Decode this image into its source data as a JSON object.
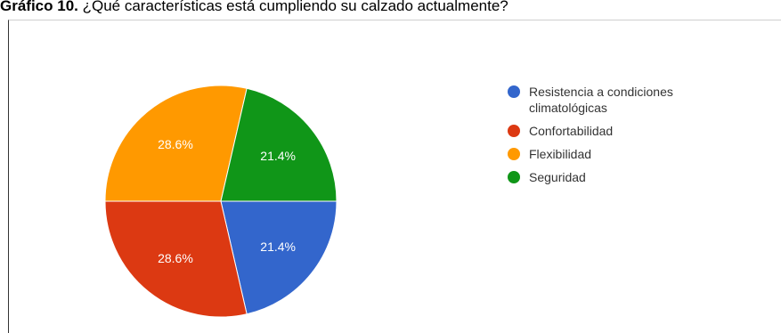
{
  "caption": {
    "label": "Gráfico 10.",
    "text": " ¿Qué características está cumpliendo su calzado actualmente?"
  },
  "chart_data": {
    "type": "pie",
    "title": "",
    "slices": [
      {
        "label": "Resistencia a condiciones climatológicas",
        "value": 21.4,
        "display": "21.4%",
        "color": "#3366cc"
      },
      {
        "label": "Confortabilidad",
        "value": 28.6,
        "display": "28.6%",
        "color": "#dc3912"
      },
      {
        "label": "Flexibilidad",
        "value": 28.6,
        "display": "28.6%",
        "color": "#ff9900"
      },
      {
        "label": "Seguridad",
        "value": 21.4,
        "display": "21.4%",
        "color": "#109618"
      }
    ],
    "legend_position": "right",
    "start_angle": "3 o'clock, clockwise"
  }
}
